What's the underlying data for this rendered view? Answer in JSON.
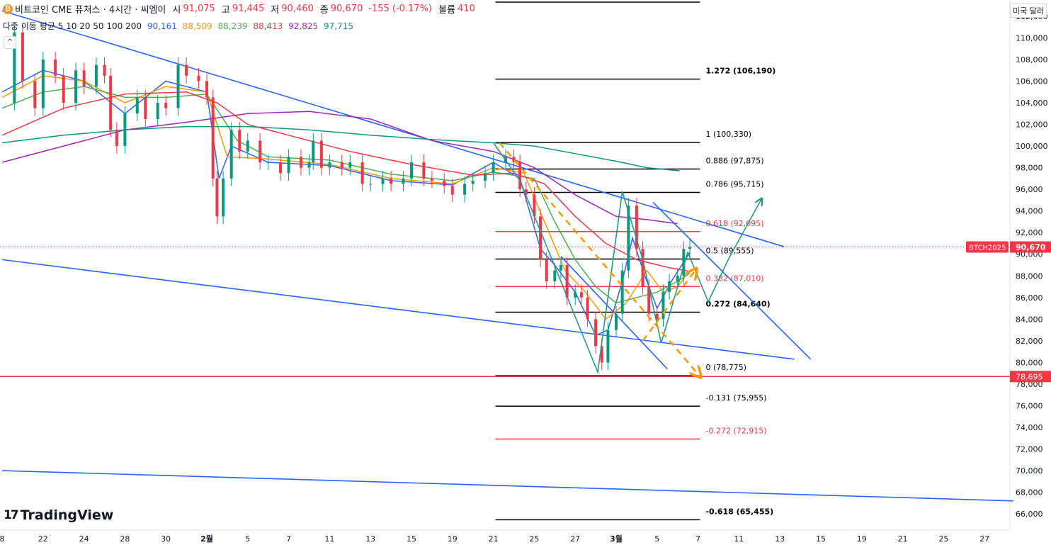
{
  "header": {
    "title": "비트코인 CME 퓨쳐스 · 4시간 · 씨엠이",
    "open_label": "시",
    "open": "91,075",
    "high_label": "고",
    "high": "91,445",
    "low_label": "저",
    "low": "90,460",
    "close_label": "종",
    "close": "90,670",
    "change": "-155 (-0.17%)",
    "volume_label": "볼륨",
    "volume": "410",
    "coin_icon": "bitcoin-icon"
  },
  "ma_legend": {
    "label": "다중 이동 평균 5 10 20 50 100 200",
    "values": [
      {
        "value": "90,161",
        "color": "#2962ff"
      },
      {
        "value": "88,509",
        "color": "#ff9800"
      },
      {
        "value": "88,239",
        "color": "#4caf50"
      },
      {
        "value": "88,413",
        "color": "#f23645"
      },
      {
        "value": "92,825",
        "color": "#9c27b0"
      },
      {
        "value": "97,715",
        "color": "#089981"
      }
    ]
  },
  "collapse_icon": "chevron-up-icon",
  "collapse_glyph": "^",
  "currency": "미국 달러",
  "brand": "TradingView",
  "colors": {
    "up": "#089981",
    "down": "#f23645",
    "trend": "#2962ff",
    "fib_black": "#000000",
    "fib_red": "#f23645",
    "pattern": "#22998a",
    "arrow_orange": "#ff9800"
  },
  "chart_data": {
    "type": "candlestick",
    "ylim": [
      64500,
      113500
    ],
    "y_ticks": [
      66000,
      68000,
      70000,
      72000,
      74000,
      76000,
      78000,
      80000,
      82000,
      84000,
      86000,
      88000,
      90000,
      92000,
      94000,
      96000,
      98000,
      100000,
      102000,
      104000,
      106000,
      108000,
      110000,
      112000
    ],
    "y_tick_labels": [
      "66,000",
      "68,000",
      "70,000",
      "72,000",
      "74,000",
      "76,000",
      "78,000",
      "80,000",
      "82,000",
      "84,000",
      "86,000",
      "88,000",
      "90,000",
      "92,000",
      "94,000",
      "96,000",
      "98,000",
      "100,000",
      "102,000",
      "104,000",
      "106,000",
      "108,000",
      "110,000",
      "112,000"
    ],
    "x_ticks": [
      {
        "label": "8",
        "day": 0
      },
      {
        "label": "22",
        "day": 2
      },
      {
        "label": "24",
        "day": 4
      },
      {
        "label": "28",
        "day": 6
      },
      {
        "label": "30",
        "day": 8
      },
      {
        "label": "2월",
        "day": 10
      },
      {
        "label": "5",
        "day": 12
      },
      {
        "label": "7",
        "day": 14
      },
      {
        "label": "11",
        "day": 16
      },
      {
        "label": "13",
        "day": 18
      },
      {
        "label": "15",
        "day": 20
      },
      {
        "label": "19",
        "day": 22
      },
      {
        "label": "21",
        "day": 24
      },
      {
        "label": "25",
        "day": 26
      },
      {
        "label": "27",
        "day": 28
      },
      {
        "label": "3월",
        "day": 30
      },
      {
        "label": "5",
        "day": 32
      },
      {
        "label": "7",
        "day": 34
      },
      {
        "label": "11",
        "day": 36
      },
      {
        "label": "13",
        "day": 38
      },
      {
        "label": "15",
        "day": 40
      },
      {
        "label": "19",
        "day": 42
      },
      {
        "label": "21",
        "day": 44
      },
      {
        "label": "25",
        "day": 46
      },
      {
        "label": "27",
        "day": 48
      }
    ],
    "price_series": [
      {
        "day": 0,
        "close": 104000
      },
      {
        "day": 0.6,
        "close": 110500
      },
      {
        "day": 1,
        "close": 106000
      },
      {
        "day": 1.6,
        "close": 103500
      },
      {
        "day": 2,
        "close": 108000
      },
      {
        "day": 2.6,
        "close": 106500
      },
      {
        "day": 3,
        "close": 104000
      },
      {
        "day": 3.6,
        "close": 107000
      },
      {
        "day": 4,
        "close": 105500
      },
      {
        "day": 4.6,
        "close": 107500
      },
      {
        "day": 5,
        "close": 106500
      },
      {
        "day": 5.3,
        "close": 101500
      },
      {
        "day": 5.6,
        "close": 100000
      },
      {
        "day": 6,
        "close": 103000
      },
      {
        "day": 6.6,
        "close": 104500
      },
      {
        "day": 7,
        "close": 102500
      },
      {
        "day": 7.6,
        "close": 104000
      },
      {
        "day": 8,
        "close": 103500
      },
      {
        "day": 8.6,
        "close": 107500
      },
      {
        "day": 9,
        "close": 106500
      },
      {
        "day": 9.6,
        "close": 106000
      },
      {
        "day": 10,
        "close": 104500
      },
      {
        "day": 10.3,
        "close": 97000
      },
      {
        "day": 10.5,
        "close": 93500
      },
      {
        "day": 10.8,
        "close": 97000
      },
      {
        "day": 11.2,
        "close": 101500
      },
      {
        "day": 11.6,
        "close": 99500
      },
      {
        "day": 12,
        "close": 100500
      },
      {
        "day": 12.6,
        "close": 98500
      },
      {
        "day": 13,
        "close": 98500
      },
      {
        "day": 13.6,
        "close": 97500
      },
      {
        "day": 14,
        "close": 99000
      },
      {
        "day": 14.6,
        "close": 98000
      },
      {
        "day": 15,
        "close": 98500
      },
      {
        "day": 15.2,
        "close": 100500
      },
      {
        "day": 15.6,
        "close": 98000
      },
      {
        "day": 16,
        "close": 98500
      },
      {
        "day": 16.6,
        "close": 98000
      },
      {
        "day": 17,
        "close": 98500
      },
      {
        "day": 17.6,
        "close": 96500
      },
      {
        "day": 18,
        "close": 96500
      },
      {
        "day": 18.6,
        "close": 97000
      },
      {
        "day": 19,
        "close": 96500
      },
      {
        "day": 19.6,
        "close": 97000
      },
      {
        "day": 20,
        "close": 98500
      },
      {
        "day": 20.6,
        "close": 97000
      },
      {
        "day": 21,
        "close": 96800
      },
      {
        "day": 21.6,
        "close": 96300
      },
      {
        "day": 22,
        "close": 95500
      },
      {
        "day": 22.6,
        "close": 96500
      },
      {
        "day": 23,
        "close": 96800
      },
      {
        "day": 23.6,
        "close": 97500
      },
      {
        "day": 24,
        "close": 98500
      },
      {
        "day": 24.6,
        "close": 99000
      },
      {
        "day": 25,
        "close": 98500
      },
      {
        "day": 25.3,
        "close": 96000
      },
      {
        "day": 25.6,
        "close": 95500
      },
      {
        "day": 26,
        "close": 93500
      },
      {
        "day": 26.3,
        "close": 89500
      },
      {
        "day": 26.6,
        "close": 87500
      },
      {
        "day": 27,
        "close": 88500
      },
      {
        "day": 27.3,
        "close": 89000
      },
      {
        "day": 27.6,
        "close": 86000
      },
      {
        "day": 28,
        "close": 86500
      },
      {
        "day": 28.3,
        "close": 86000
      },
      {
        "day": 28.6,
        "close": 84000
      },
      {
        "day": 29,
        "close": 81500
      },
      {
        "day": 29.3,
        "close": 80000
      },
      {
        "day": 29.6,
        "close": 83000
      },
      {
        "day": 30,
        "close": 84500
      },
      {
        "day": 30.3,
        "close": 88500
      },
      {
        "day": 30.6,
        "close": 94500
      },
      {
        "day": 31,
        "close": 90500
      },
      {
        "day": 31.3,
        "close": 87000
      },
      {
        "day": 31.6,
        "close": 84500
      },
      {
        "day": 32,
        "close": 84000
      },
      {
        "day": 32.3,
        "close": 86500
      },
      {
        "day": 32.6,
        "close": 87500
      },
      {
        "day": 33,
        "close": 88000
      },
      {
        "day": 33.3,
        "close": 90500
      },
      {
        "day": 33.6,
        "close": 90670
      }
    ],
    "moving_averages": [
      {
        "name": "MA5",
        "color": "#2962ff",
        "points": [
          [
            0,
            105000
          ],
          [
            2,
            107000
          ],
          [
            4,
            106000
          ],
          [
            6,
            103000
          ],
          [
            8,
            106000
          ],
          [
            10,
            105000
          ],
          [
            10.6,
            97000
          ],
          [
            11.2,
            100000
          ],
          [
            13,
            98500
          ],
          [
            16,
            98200
          ],
          [
            19,
            96800
          ],
          [
            22,
            96400
          ],
          [
            24,
            98500
          ],
          [
            25.3,
            97000
          ],
          [
            26.3,
            90500
          ],
          [
            27,
            89000
          ],
          [
            28,
            86500
          ],
          [
            29,
            82500
          ],
          [
            29.6,
            83000
          ],
          [
            30.3,
            87500
          ],
          [
            30.8,
            91500
          ],
          [
            31.4,
            88000
          ],
          [
            32,
            85000
          ],
          [
            32.7,
            87500
          ],
          [
            33.6,
            90161
          ]
        ]
      },
      {
        "name": "MA10",
        "color": "#ff9800",
        "points": [
          [
            0,
            104500
          ],
          [
            2,
            106500
          ],
          [
            4,
            106000
          ],
          [
            6,
            104000
          ],
          [
            8,
            105500
          ],
          [
            10,
            105000
          ],
          [
            11,
            99000
          ],
          [
            13,
            98800
          ],
          [
            16,
            98300
          ],
          [
            19,
            97000
          ],
          [
            22,
            96500
          ],
          [
            24,
            98000
          ],
          [
            25.5,
            97500
          ],
          [
            26.5,
            93000
          ],
          [
            27.5,
            88500
          ],
          [
            28.5,
            86500
          ],
          [
            29.5,
            84000
          ],
          [
            30.5,
            85500
          ],
          [
            31.5,
            88500
          ],
          [
            32.3,
            86500
          ],
          [
            33,
            87000
          ],
          [
            33.6,
            88509
          ]
        ]
      },
      {
        "name": "MA20",
        "color": "#4caf50",
        "points": [
          [
            0,
            103500
          ],
          [
            2,
            105000
          ],
          [
            4,
            105500
          ],
          [
            6,
            104500
          ],
          [
            8,
            104500
          ],
          [
            10,
            104800
          ],
          [
            11.5,
            100500
          ],
          [
            13,
            99000
          ],
          [
            16,
            98700
          ],
          [
            19,
            97400
          ],
          [
            22,
            96800
          ],
          [
            24,
            97600
          ],
          [
            26,
            97000
          ],
          [
            27,
            93000
          ],
          [
            28,
            89500
          ],
          [
            29,
            87000
          ],
          [
            30,
            85500
          ],
          [
            31,
            86000
          ],
          [
            32,
            86500
          ],
          [
            33,
            87500
          ],
          [
            33.6,
            88239
          ]
        ]
      },
      {
        "name": "MA50",
        "color": "#f23645",
        "points": [
          [
            0,
            101000
          ],
          [
            3,
            103500
          ],
          [
            6,
            104800
          ],
          [
            9,
            105000
          ],
          [
            10.5,
            104000
          ],
          [
            12,
            102000
          ],
          [
            14,
            101000
          ],
          [
            17,
            99500
          ],
          [
            20,
            98300
          ],
          [
            23,
            97300
          ],
          [
            25,
            97500
          ],
          [
            26.5,
            96500
          ],
          [
            28,
            93500
          ],
          [
            29.5,
            91000
          ],
          [
            31,
            89500
          ],
          [
            32.5,
            88800
          ],
          [
            33.6,
            88413
          ]
        ]
      },
      {
        "name": "MA100",
        "color": "#9c27b0",
        "points": [
          [
            0,
            98500
          ],
          [
            3,
            100000
          ],
          [
            6,
            101500
          ],
          [
            9,
            102200
          ],
          [
            12,
            103000
          ],
          [
            15,
            103200
          ],
          [
            18,
            102500
          ],
          [
            21,
            100500
          ],
          [
            24,
            99500
          ],
          [
            26,
            98000
          ],
          [
            28,
            95500
          ],
          [
            30,
            93500
          ],
          [
            31.5,
            93200
          ],
          [
            33,
            92825
          ]
        ]
      },
      {
        "name": "MA200",
        "color": "#089981",
        "points": [
          [
            0,
            100300
          ],
          [
            3,
            101000
          ],
          [
            6,
            101500
          ],
          [
            9,
            101800
          ],
          [
            12,
            101800
          ],
          [
            15,
            101500
          ],
          [
            18,
            101000
          ],
          [
            21,
            100600
          ],
          [
            24,
            100300
          ],
          [
            26,
            100000
          ],
          [
            28,
            99300
          ],
          [
            30,
            98600
          ],
          [
            31.5,
            98000
          ],
          [
            33.1,
            97715
          ]
        ]
      }
    ],
    "fib_levels": [
      {
        "ratio": "1.272",
        "price": 106190,
        "label": "1.272 (106,190)",
        "color": "black"
      },
      {
        "ratio": "1",
        "price": 100330,
        "label": "1 (100,330)",
        "color": "black"
      },
      {
        "ratio": "0.886",
        "price": 97875,
        "label": "0.886 (97,875)",
        "color": "black"
      },
      {
        "ratio": "0.786",
        "price": 95715,
        "label": "0.786 (95,715)",
        "color": "black"
      },
      {
        "ratio": "0.618",
        "price": 92095,
        "label": "0.618 (92,095)",
        "color": "red"
      },
      {
        "ratio": "0.5",
        "price": 89555,
        "label": "0.5 (89,555)",
        "color": "black"
      },
      {
        "ratio": "0.382",
        "price": 87010,
        "label": "0.382 (87,010)",
        "color": "red"
      },
      {
        "ratio": "0.272",
        "price": 84640,
        "label": "0.272 (84,640)",
        "color": "black"
      },
      {
        "ratio": "0",
        "price": 78775,
        "label": "0 (78,775)",
        "color": "black"
      },
      {
        "ratio": "-0.131",
        "price": 75955,
        "label": "-0.131 (75,955)",
        "color": "black"
      },
      {
        "ratio": "-0.272",
        "price": 72915,
        "label": "-0.272 (72,915)",
        "color": "red"
      },
      {
        "ratio": "-0.618",
        "price": 65455,
        "label": "-0.618 (65,455)",
        "color": "black"
      }
    ],
    "fib_top_extra_price": 113300,
    "fib_x_range": [
      24.1,
      34.1
    ],
    "horizontal_support": {
      "price": 78695,
      "label": "78,695",
      "color": "#f23645"
    },
    "current_price": {
      "price": 90670,
      "label": "90,670",
      "symbol": "BTCH2025"
    },
    "trendlines": [
      {
        "from": [
          0,
          112500
        ],
        "to": [
          38.2,
          90700
        ]
      },
      {
        "from": [
          0,
          89500
        ],
        "to": [
          38.7,
          80300
        ]
      },
      {
        "from": [
          0,
          70000
        ],
        "to": [
          49.4,
          67200
        ]
      },
      {
        "from": [
          31.8,
          94800
        ],
        "to": [
          39.5,
          80300
        ]
      },
      {
        "from": [
          27.3,
          89800
        ],
        "to": [
          32.5,
          79400
        ]
      }
    ],
    "zigzag_pattern": [
      [
        24,
        100300
      ],
      [
        25.3,
        96800
      ],
      [
        29.1,
        79100
      ],
      [
        30.3,
        95800
      ],
      [
        31.3,
        89500
      ],
      [
        32.2,
        81800
      ],
      [
        33.5,
        90200
      ]
    ],
    "zigzag_projection": [
      [
        33.5,
        90200
      ],
      [
        34.5,
        85600
      ],
      [
        35.5,
        89600
      ],
      [
        37.1,
        95100
      ]
    ],
    "orange_dashed_arrows": [
      {
        "from": [
          24.3,
          100300
        ],
        "to": [
          34.1,
          78700
        ]
      },
      {
        "from": [
          31.3,
          82000
        ],
        "to": [
          33.9,
          88600
        ]
      }
    ]
  }
}
